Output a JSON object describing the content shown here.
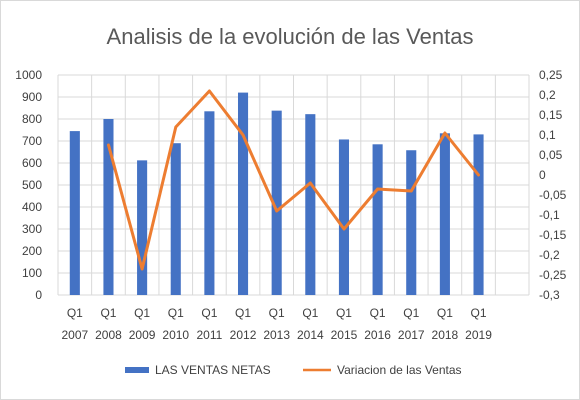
{
  "chart_data": {
    "type": "bar+line",
    "title": "Analisis de la evolución de las Ventas",
    "categories": [
      [
        "Q1",
        "2007"
      ],
      [
        "Q1",
        "2008"
      ],
      [
        "Q1",
        "2009"
      ],
      [
        "Q1",
        "2010"
      ],
      [
        "Q1",
        "2011"
      ],
      [
        "Q1",
        "2012"
      ],
      [
        "Q1",
        "2013"
      ],
      [
        "Q1",
        "2014"
      ],
      [
        "Q1",
        "2015"
      ],
      [
        "Q1",
        "2016"
      ],
      [
        "Q1",
        "2017"
      ],
      [
        "Q1",
        "2018"
      ],
      [
        "Q1",
        "2019"
      ]
    ],
    "series": [
      {
        "name": "LAS VENTAS NETAS",
        "type": "bar",
        "axis": "left",
        "color": "#4472C4",
        "values": [
          745,
          800,
          612,
          690,
          835,
          920,
          838,
          822,
          707,
          685,
          658,
          735,
          730
        ]
      },
      {
        "name": "Variacion de las Ventas",
        "type": "line",
        "axis": "right",
        "color": "#ED7D31",
        "values": [
          null,
          0.075,
          -0.235,
          0.12,
          0.21,
          0.1,
          -0.09,
          -0.02,
          -0.135,
          -0.035,
          -0.04,
          0.105,
          0.0
        ]
      }
    ],
    "y_left": {
      "ylim": [
        0,
        1000
      ],
      "ticks": [
        "0",
        "100",
        "200",
        "300",
        "400",
        "500",
        "600",
        "700",
        "800",
        "900",
        "1000"
      ]
    },
    "y_right": {
      "ylim": [
        -0.3,
        0.25
      ],
      "ticks": [
        "0,25",
        "0,2",
        "0,15",
        "0,1",
        "0,05",
        "0",
        "-0,05",
        "-0,1",
        "-0,15",
        "-0,2",
        "-0,25",
        "-0,3"
      ]
    },
    "grid": true,
    "legend_position": "bottom"
  }
}
